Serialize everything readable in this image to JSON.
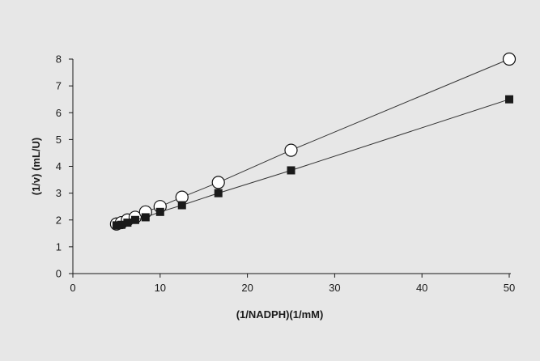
{
  "chart_data": {
    "type": "line",
    "xlabel": "(1/NADPH)(1/mM)",
    "ylabel": "(1/v) (mL/U)",
    "xlim": [
      0,
      50
    ],
    "ylim": [
      0,
      8
    ],
    "xticks": [
      0,
      10,
      20,
      30,
      40,
      50
    ],
    "yticks": [
      0,
      1,
      2,
      3,
      4,
      5,
      6,
      7,
      8
    ],
    "grid": false,
    "legend": "none",
    "series": [
      {
        "marker": "open-circle",
        "color": "#222222",
        "x": [
          5,
          5.56,
          6.25,
          7.14,
          8.33,
          10,
          12.5,
          16.67,
          25,
          50
        ],
        "y": [
          1.85,
          1.9,
          2.0,
          2.1,
          2.3,
          2.5,
          2.85,
          3.4,
          4.6,
          8.0
        ]
      },
      {
        "marker": "filled-square",
        "color": "#222222",
        "x": [
          5,
          5.56,
          6.25,
          7.14,
          8.33,
          10,
          12.5,
          16.67,
          25,
          50
        ],
        "y": [
          1.8,
          1.82,
          1.9,
          2.0,
          2.1,
          2.3,
          2.55,
          3.0,
          3.85,
          6.5
        ]
      }
    ]
  }
}
